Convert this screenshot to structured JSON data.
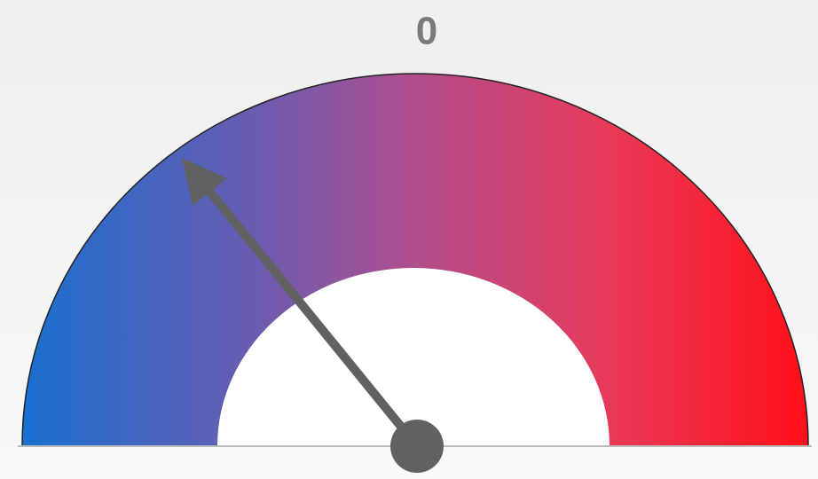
{
  "gauge": {
    "label": "0"
  }
}
